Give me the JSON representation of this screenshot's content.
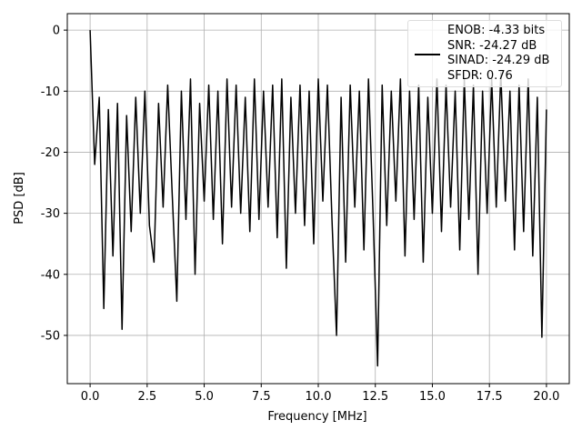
{
  "chart_data": {
    "type": "line",
    "xlabel": "Frequency [MHz]",
    "ylabel": "PSD [dB]",
    "x": [
      0,
      0.2,
      0.4,
      0.6,
      0.8,
      1.0,
      1.2,
      1.4,
      1.6,
      1.8,
      2.0,
      2.2,
      2.4,
      2.6,
      2.8,
      3.0,
      3.2,
      3.4,
      3.6,
      3.8,
      4.0,
      4.2,
      4.4,
      4.6,
      4.8,
      5.0,
      5.2,
      5.4,
      5.6,
      5.8,
      6.0,
      6.2,
      6.4,
      6.6,
      6.8,
      7.0,
      7.2,
      7.4,
      7.6,
      7.8,
      8.0,
      8.2,
      8.4,
      8.6,
      8.8,
      9.0,
      9.2,
      9.4,
      9.6,
      9.8,
      10.0,
      10.2,
      10.4,
      10.6,
      10.8,
      11.0,
      11.2,
      11.4,
      11.6,
      11.8,
      12.0,
      12.2,
      12.4,
      12.6,
      12.8,
      13.0,
      13.2,
      13.4,
      13.6,
      13.8,
      14.0,
      14.2,
      14.4,
      14.6,
      14.8,
      15.0,
      15.2,
      15.4,
      15.6,
      15.8,
      16.0,
      16.2,
      16.4,
      16.6,
      16.8,
      17.0,
      17.2,
      17.4,
      17.6,
      17.8,
      18.0,
      18.2,
      18.4,
      18.6,
      18.8,
      19.0,
      19.2,
      19.4,
      19.6,
      19.8,
      20.0
    ],
    "series": [
      {
        "name": "ENOB: -4.33 bits\nSNR: -24.27 dB\nSINAD: -24.29 dB\nSFDR: 0.76",
        "color": "#000000",
        "values": [
          0,
          -22,
          -11,
          -45.6,
          -13,
          -37,
          -12,
          -49,
          -14,
          -33,
          -11,
          -30,
          -10,
          -32,
          -38,
          -12,
          -29,
          -9,
          -27,
          -44.4,
          -10,
          -31,
          -8,
          -40,
          -12,
          -28,
          -9,
          -31,
          -10,
          -35,
          -8,
          -29,
          -9,
          -30,
          -11,
          -33,
          -8,
          -31,
          -10,
          -29,
          -9,
          -34,
          -8,
          -39,
          -11,
          -30,
          -9,
          -32,
          -10,
          -35,
          -8,
          -28,
          -9,
          -31,
          -50,
          -11,
          -38,
          -9,
          -29,
          -10,
          -36,
          -8,
          -30,
          -55,
          -9,
          -32,
          -10,
          -28,
          -8,
          -37,
          -10,
          -31,
          -9,
          -38,
          -11,
          -30,
          -8,
          -33,
          -9,
          -29,
          -10,
          -36,
          -8,
          -31,
          -9,
          -40,
          -10,
          -30,
          -8,
          -29,
          -7,
          -28,
          -10,
          -36,
          -9,
          -33,
          -8,
          -37,
          -11,
          -50.3,
          -13
        ]
      }
    ],
    "xlim": [
      -1,
      21
    ],
    "ylim": [
      -57.9,
      2.7
    ],
    "xticks": [
      {
        "value": 0,
        "label": "0.0"
      },
      {
        "value": 2.5,
        "label": "2.5"
      },
      {
        "value": 5,
        "label": "5.0"
      },
      {
        "value": 7.5,
        "label": "7.5"
      },
      {
        "value": 10,
        "label": "10.0"
      },
      {
        "value": 12.5,
        "label": "12.5"
      },
      {
        "value": 15,
        "label": "15.0"
      },
      {
        "value": 17.5,
        "label": "17.5"
      },
      {
        "value": 20,
        "label": "20.0"
      }
    ],
    "yticks": [
      0,
      -10,
      -20,
      -30,
      -40,
      -50
    ],
    "grid": true,
    "legend": "upper right"
  }
}
